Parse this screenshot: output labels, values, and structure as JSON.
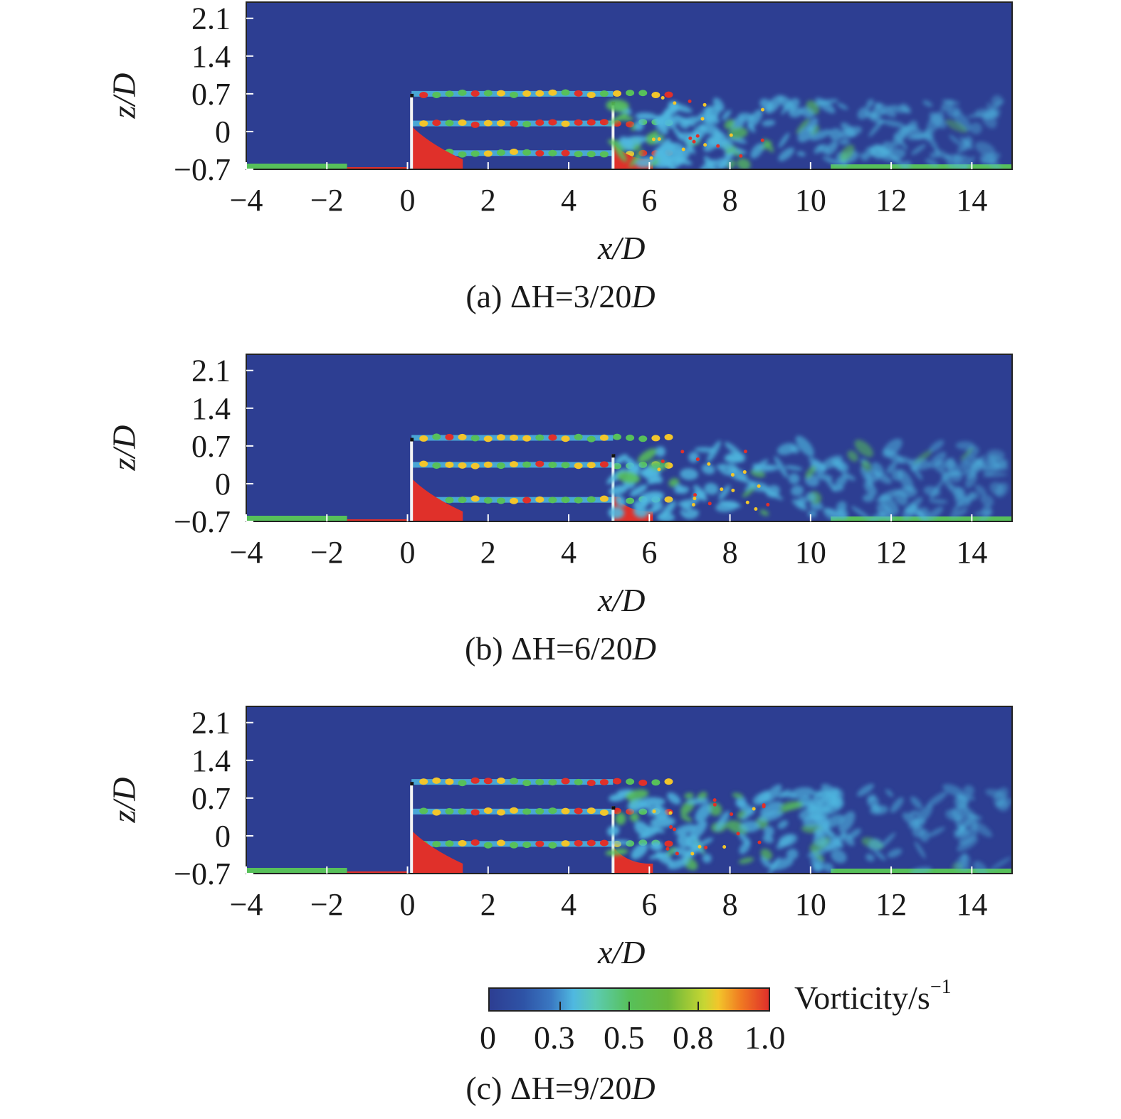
{
  "chart_data": [
    {
      "type": "heatmap",
      "caption_prefix": "(a) ΔH=3/20",
      "caption_unit": "D",
      "xlabel": "x/D",
      "ylabel": "z/D",
      "x_ticks": [
        "−4",
        "−2",
        "0",
        "2",
        "4",
        "6",
        "8",
        "10",
        "12",
        "14"
      ],
      "x_values": [
        -4,
        -2,
        0,
        2,
        4,
        6,
        8,
        10,
        12,
        14
      ],
      "y_ticks": [
        "2.1",
        "1.4",
        "0.7",
        "0",
        "−0.7"
      ],
      "y_values": [
        2.1,
        1.4,
        0.7,
        0,
        -0.7
      ],
      "xlim": [
        -4,
        15
      ],
      "ylim": [
        -0.7,
        2.4
      ],
      "obstacles": [
        {
          "x": 0.1,
          "top": 0.7
        },
        {
          "x": 5.1,
          "top": 0.55
        }
      ],
      "shear_layers": [
        0.7,
        0.15,
        -0.4
      ]
    },
    {
      "type": "heatmap",
      "caption_prefix": "(b) ΔH=6/20",
      "caption_unit": "D",
      "xlabel": "x/D",
      "ylabel": "z/D",
      "x_ticks": [
        "−4",
        "−2",
        "0",
        "2",
        "4",
        "6",
        "8",
        "10",
        "12",
        "14"
      ],
      "x_values": [
        -4,
        -2,
        0,
        2,
        4,
        6,
        8,
        10,
        12,
        14
      ],
      "y_ticks": [
        "2.1",
        "1.4",
        "0.7",
        "0",
        "−0.7"
      ],
      "y_values": [
        2.1,
        1.4,
        0.7,
        0,
        -0.7
      ],
      "xlim": [
        -4,
        15
      ],
      "ylim": [
        -0.7,
        2.4
      ],
      "obstacles": [
        {
          "x": 0.1,
          "top": 0.85
        },
        {
          "x": 5.1,
          "top": 0.55
        }
      ],
      "shear_layers": [
        0.85,
        0.35,
        -0.3
      ]
    },
    {
      "type": "heatmap",
      "caption_prefix": "(c) ΔH=9/20",
      "caption_unit": "D",
      "xlabel": "x/D",
      "ylabel": "z/D",
      "x_ticks": [
        "−4",
        "−2",
        "0",
        "2",
        "4",
        "6",
        "8",
        "10",
        "12",
        "14"
      ],
      "x_values": [
        -4,
        -2,
        0,
        2,
        4,
        6,
        8,
        10,
        12,
        14
      ],
      "y_ticks": [
        "2.1",
        "1.4",
        "0.7",
        "0",
        "−0.7"
      ],
      "y_values": [
        2.1,
        1.4,
        0.7,
        0,
        -0.7
      ],
      "xlim": [
        -4,
        15
      ],
      "ylim": [
        -0.7,
        2.4
      ],
      "obstacles": [
        {
          "x": 0.1,
          "top": 1.0
        },
        {
          "x": 5.1,
          "top": 0.55
        }
      ],
      "shear_layers": [
        1.0,
        0.45,
        -0.15
      ]
    }
  ],
  "colorbar": {
    "title": "Vorticity/s",
    "title_sup": "−1",
    "tick_labels": [
      "0",
      "0.3",
      "0.5",
      "0.8",
      "1.0"
    ],
    "tick_values": [
      0,
      0.3,
      0.5,
      0.8,
      1.0
    ],
    "colors": {
      "low": "#2d3e92",
      "mid_low": "#4fb8e0",
      "mid": "#57c05a",
      "mid_high": "#f2c52b",
      "high": "#e0302a"
    }
  }
}
